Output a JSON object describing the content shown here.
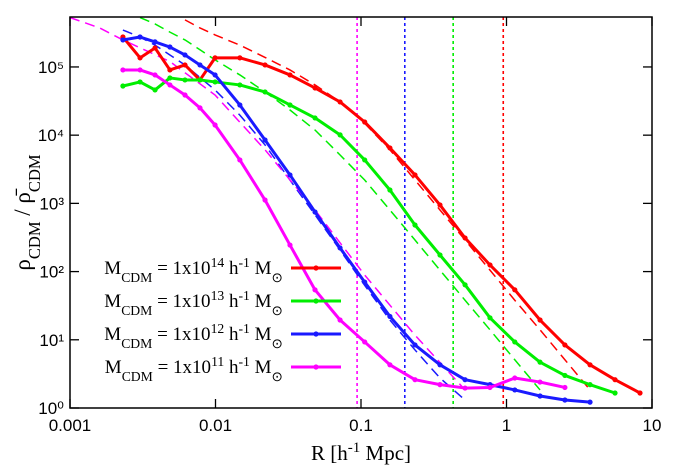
{
  "chart_data": {
    "type": "line",
    "log_x": true,
    "log_y": true,
    "xlabel": [
      {
        "t": "R  [h"
      },
      {
        "t": "-1",
        "s": "sup"
      },
      {
        "t": " Mpc]"
      }
    ],
    "ylabel": [
      {
        "t": "ρ"
      },
      {
        "t": "CDM",
        "s": "sub"
      },
      {
        "t": " / "
      },
      {
        "t": "ρ̄"
      },
      {
        "t": "CDM",
        "s": "sub"
      }
    ],
    "xlim": [
      0.001,
      10
    ],
    "xticks": [
      0.001,
      0.01,
      0.1,
      1,
      10
    ],
    "ylim": [
      1,
      540000
    ],
    "yticks": [
      {
        "value": 1,
        "label": "10⁰"
      },
      {
        "value": 10,
        "label": "10¹"
      },
      {
        "value": 100,
        "label": "10²"
      },
      {
        "value": 1000,
        "label": "10³"
      },
      {
        "value": 10000,
        "label": "10⁴"
      },
      {
        "value": 100000,
        "label": "10⁵"
      }
    ],
    "legend": "lower left",
    "x": [
      0.00231,
      0.00303,
      0.00384,
      0.00486,
      0.00617,
      0.00782,
      0.00993,
      0.0147,
      0.0219,
      0.0325,
      0.0483,
      0.0718,
      0.106,
      0.158,
      0.235,
      0.349,
      0.519,
      0.77,
      1.14,
      1.7,
      2.52,
      3.75,
      5.57,
      8.27
    ],
    "series": [
      {
        "name": [
          {
            "t": "M"
          },
          {
            "t": "CDM",
            "s": "sub"
          },
          {
            "t": " = 1x10"
          },
          {
            "t": "14",
            "s": "sup"
          },
          {
            "t": " h"
          },
          {
            "t": "-1",
            "s": "sup"
          },
          {
            "t": " M"
          },
          {
            "t": "⊙",
            "s": "sub"
          }
        ],
        "color": "#ff0000",
        "values": [
          275000,
          136000,
          190000,
          90400,
          107000,
          64500,
          136000,
          136000,
          107000,
          76400,
          49200,
          30700,
          15600,
          6490,
          2610,
          948,
          311,
          125,
          54,
          19.5,
          8.4,
          4.3,
          2.6,
          1.66
        ]
      },
      {
        "name": [
          {
            "t": "M"
          },
          {
            "t": "CDM",
            "s": "sub"
          },
          {
            "t": " = 1x10"
          },
          {
            "t": "13",
            "s": "sup"
          },
          {
            "t": " h"
          },
          {
            "t": "-1",
            "s": "sup"
          },
          {
            "t": " M"
          },
          {
            "t": "⊙",
            "s": "sub"
          }
        ],
        "color": "#00ee00",
        "values": [
          52600,
          60300,
          46000,
          69000,
          64500,
          64500,
          60300,
          54500,
          43000,
          27700,
          17900,
          10100,
          4330,
          1570,
          482,
          175,
          64,
          21,
          9.3,
          4.7,
          3.0,
          2.2,
          1.66,
          null
        ]
      },
      {
        "name": [
          {
            "t": "M"
          },
          {
            "t": "CDM",
            "s": "sub"
          },
          {
            "t": " = 1x10"
          },
          {
            "t": "12",
            "s": "sup"
          },
          {
            "t": " h"
          },
          {
            "t": "-1",
            "s": "sup"
          },
          {
            "t": " M"
          },
          {
            "t": "⊙",
            "s": "sub"
          }
        ],
        "color": "#1a1aff",
        "values": [
          249000,
          275000,
          233000,
          196000,
          150000,
          107000,
          76400,
          27700,
          8500,
          2610,
          748,
          222,
          70,
          22,
          8.4,
          4.3,
          2.6,
          2.2,
          1.84,
          1.5,
          1.31,
          1.22,
          null,
          null
        ]
      },
      {
        "name": [
          {
            "t": "M"
          },
          {
            "t": "CDM",
            "s": "sub"
          },
          {
            "t": " = 1x10"
          },
          {
            "t": "11",
            "s": "sup"
          },
          {
            "t": " h"
          },
          {
            "t": "-1",
            "s": "sup"
          },
          {
            "t": " M"
          },
          {
            "t": "⊙",
            "s": "sub"
          }
        ],
        "color": "#ff00ff",
        "values": [
          90400,
          90400,
          76400,
          54500,
          38800,
          25100,
          14100,
          4330,
          1120,
          245,
          54,
          19.5,
          9.3,
          4.3,
          2.6,
          2.2,
          1.96,
          2.0,
          2.75,
          2.4,
          2.0,
          null,
          null,
          null
        ]
      }
    ],
    "fits": [
      {
        "color": "#ff0000",
        "x": [
          0.00617,
          0.00782,
          0.00993,
          0.0147,
          0.0219,
          0.0325,
          0.0483,
          0.0718,
          0.106,
          0.158,
          0.235,
          0.349,
          0.519,
          0.77,
          1.14,
          1.7,
          2.52,
          3.75
        ],
        "values": [
          490000,
          373000,
          295000,
          209000,
          138000,
          90400,
          54500,
          30700,
          14900,
          6100,
          2200,
          800,
          290,
          105,
          38,
          14,
          5.1,
          1.84
        ]
      },
      {
        "color": "#00ee00",
        "x": [
          0.00303,
          0.00384,
          0.00486,
          0.00617,
          0.00782,
          0.00993,
          0.0147,
          0.0219,
          0.0325,
          0.0483,
          0.0718,
          0.106,
          0.158,
          0.235,
          0.349,
          0.519,
          0.77,
          1.14,
          1.7
        ],
        "values": [
          530000,
          427000,
          324000,
          249000,
          179000,
          127000,
          76400,
          43000,
          23400,
          11900,
          5120,
          2200,
          800,
          290,
          105,
          38,
          14,
          5.1,
          1.84
        ]
      },
      {
        "color": "#1a1aff",
        "x": [
          0.00231,
          0.00303,
          0.00384,
          0.00486,
          0.00617,
          0.00782,
          0.00993,
          0.0147,
          0.0219,
          0.0325,
          0.0483,
          0.0718,
          0.106,
          0.158,
          0.235,
          0.349,
          0.519
        ],
        "values": [
          348000,
          275000,
          209000,
          150000,
          107000,
          70000,
          46000,
          19700,
          7200,
          2200,
          680,
          207,
          63,
          19.5,
          7.1,
          2.75,
          1.31
        ]
      },
      {
        "color": "#ff00ff",
        "x": [
          0.001,
          0.0016,
          0.00231,
          0.00486,
          0.00993,
          0.0219,
          0.0483,
          0.106,
          0.235,
          0.519
        ],
        "values": [
          530000,
          373000,
          249000,
          120000,
          38800,
          6100,
          800,
          89,
          11.7,
          1.84
        ]
      }
    ],
    "vlines": [
      {
        "x": 0.094,
        "color": "#ff00ff"
      },
      {
        "x": 0.2,
        "color": "#1a1aff"
      },
      {
        "x": 0.43,
        "color": "#00ee00"
      },
      {
        "x": 0.95,
        "color": "#ff0000"
      }
    ]
  }
}
